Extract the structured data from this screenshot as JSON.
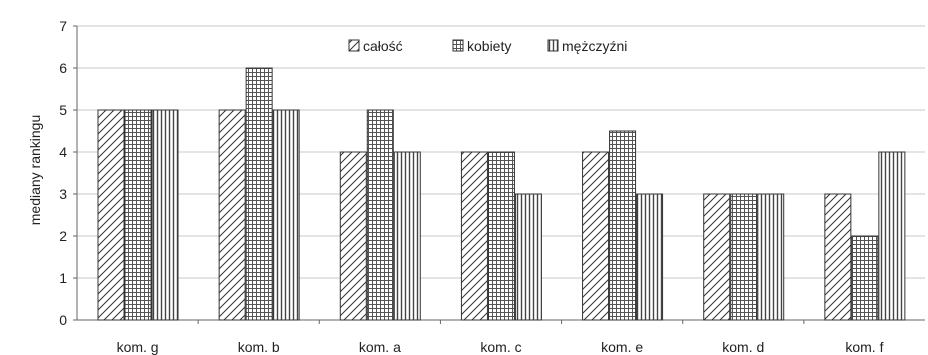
{
  "chart_data": {
    "type": "bar",
    "title": "",
    "xlabel": "",
    "ylabel": "mediany rankingu",
    "ylim": [
      0,
      7
    ],
    "yticks": [
      0,
      1,
      2,
      3,
      4,
      5,
      6,
      7
    ],
    "grid": true,
    "legend_position": "top-center",
    "categories": [
      "kom. g",
      "kom. b",
      "kom. a",
      "kom. c",
      "kom. e",
      "kom. d",
      "kom. f"
    ],
    "series": [
      {
        "name": "całość",
        "pattern": "diagonal-hatch",
        "values": [
          5,
          5,
          4,
          4,
          4,
          3,
          3
        ]
      },
      {
        "name": "kobiety",
        "pattern": "crosshatch-grid",
        "values": [
          5,
          6,
          5,
          4,
          4.5,
          3,
          2
        ]
      },
      {
        "name": "mężczyźni",
        "pattern": "vertical-stripes",
        "values": [
          5,
          5,
          4,
          3,
          3,
          3,
          4
        ]
      }
    ]
  }
}
